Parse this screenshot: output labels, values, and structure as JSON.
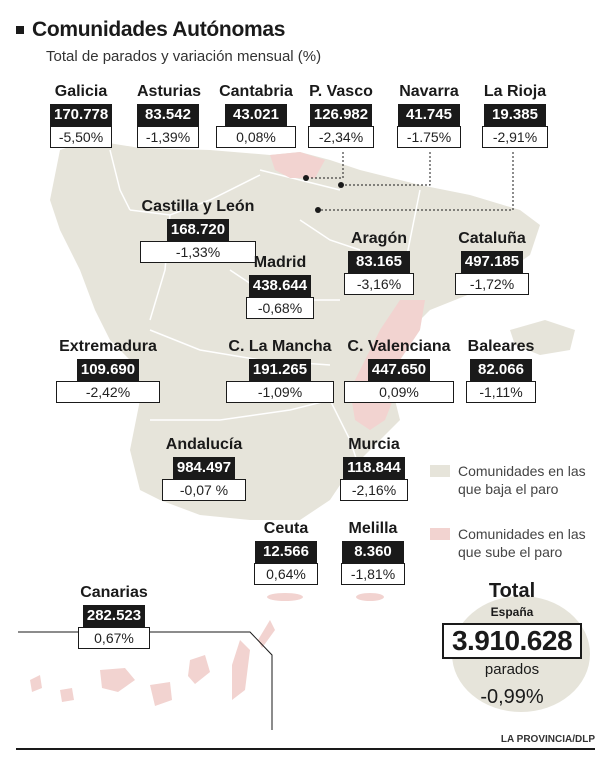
{
  "header": {
    "title": "Comunidades Autónomas",
    "subtitle": "Total de parados y variación mensual (%)"
  },
  "colors": {
    "baja": "#e6e4da",
    "sube": "#f2d3d0",
    "border": "#ffffff",
    "label_bg": "#1a1a1a"
  },
  "regions": [
    {
      "id": "galicia",
      "name": "Galicia",
      "parados": "170.778",
      "variacion": "-5,50%",
      "trend": "baja"
    },
    {
      "id": "asturias",
      "name": "Asturias",
      "parados": "83.542",
      "variacion": "-1,39%",
      "trend": "baja"
    },
    {
      "id": "cantabria",
      "name": "Cantabria",
      "parados": "43.021",
      "variacion": "0,08%",
      "trend": "sube"
    },
    {
      "id": "pvasco",
      "name": "P. Vasco",
      "parados": "126.982",
      "variacion": "-2,34%",
      "trend": "baja"
    },
    {
      "id": "navarra",
      "name": "Navarra",
      "parados": "41.745",
      "variacion": "-1.75%",
      "trend": "baja"
    },
    {
      "id": "rioja",
      "name": "La Rioja",
      "parados": "19.385",
      "variacion": "-2,91%",
      "trend": "baja"
    },
    {
      "id": "castillaleon",
      "name": "Castilla y León",
      "parados": "168.720",
      "variacion": "-1,33%",
      "trend": "baja"
    },
    {
      "id": "aragon",
      "name": "Aragón",
      "parados": "83.165",
      "variacion": "-3,16%",
      "trend": "baja"
    },
    {
      "id": "cataluna",
      "name": "Cataluña",
      "parados": "497.185",
      "variacion": "-1,72%",
      "trend": "baja"
    },
    {
      "id": "madrid",
      "name": "Madrid",
      "parados": "438.644",
      "variacion": "-0,68%",
      "trend": "baja"
    },
    {
      "id": "extremadura",
      "name": "Extremadura",
      "parados": "109.690",
      "variacion": "-2,42%",
      "trend": "baja"
    },
    {
      "id": "clamancha",
      "name": "C. La Mancha",
      "parados": "191.265",
      "variacion": "-1,09%",
      "trend": "baja"
    },
    {
      "id": "cvalenciana",
      "name": "C. Valenciana",
      "parados": "447.650",
      "variacion": "0,09%",
      "trend": "sube"
    },
    {
      "id": "baleares",
      "name": "Baleares",
      "parados": "82.066",
      "variacion": "-1,11%",
      "trend": "baja"
    },
    {
      "id": "andalucia",
      "name": "Andalucía",
      "parados": "984.497",
      "variacion": "-0,07 %",
      "trend": "baja"
    },
    {
      "id": "murcia",
      "name": "Murcia",
      "parados": "118.844",
      "variacion": "-2,16%",
      "trend": "baja"
    },
    {
      "id": "ceuta",
      "name": "Ceuta",
      "parados": "12.566",
      "variacion": "0,64%",
      "trend": "sube"
    },
    {
      "id": "melilla",
      "name": "Melilla",
      "parados": "8.360",
      "variacion": "-1,81%",
      "trend": "baja"
    },
    {
      "id": "canarias",
      "name": "Canarias",
      "parados": "282.523",
      "variacion": "0,67%",
      "trend": "sube"
    }
  ],
  "legend": {
    "baja_label": "Comunidades en las que baja el paro",
    "sube_label": "Comunidades en las que sube el paro"
  },
  "total": {
    "label": "Total",
    "sublabel": "España",
    "value": "3.910.628",
    "unit": "parados",
    "variacion": "-0,99%"
  },
  "source": "LA PROVINCIA/DLP"
}
